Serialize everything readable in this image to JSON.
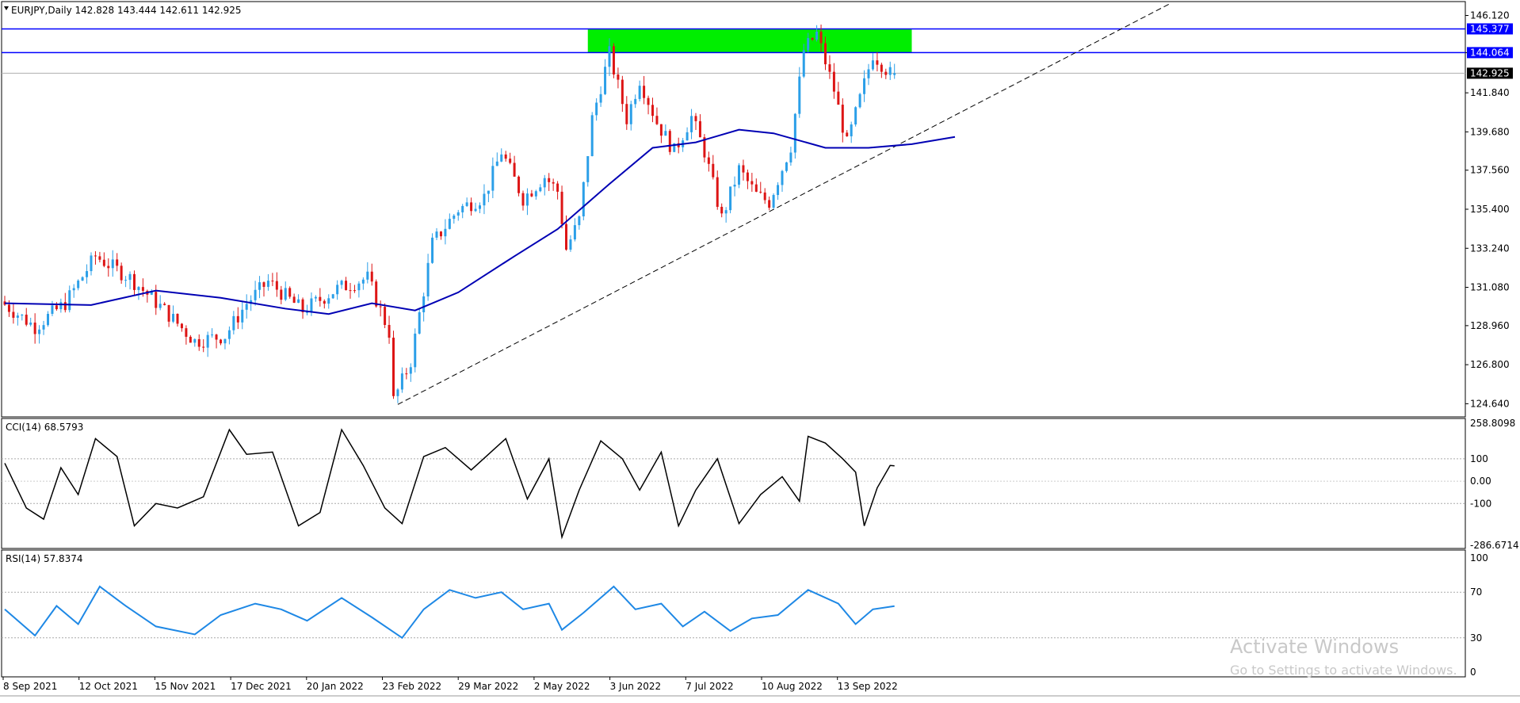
{
  "header": {
    "symbol_line": "EURJPY,Daily  142.828 143.444 142.611 142.925"
  },
  "watermark": {
    "line1": "Activate Windows",
    "line2": "Go to Settings to activate Windows."
  },
  "colors": {
    "bull": "#2b9fe8",
    "bear": "#dd1515",
    "ma": "#0000b4",
    "zone": "#00ee00",
    "hline": "#0000ff",
    "cci": "#000000",
    "rsi": "#1e88e5"
  },
  "chart_data": [
    {
      "type": "candlestick",
      "symbol": "EURJPY",
      "timeframe": "Daily",
      "ohlc_last": {
        "open": 142.828,
        "high": 143.444,
        "low": 142.611,
        "close": 142.925
      },
      "price_ticks": [
        "146.120",
        "144.064",
        "141.840",
        "139.680",
        "137.560",
        "135.400",
        "133.240",
        "131.080",
        "128.960",
        "126.800",
        "124.640"
      ],
      "ylim": [
        124.0,
        146.8
      ],
      "date_labels": [
        "8 Sep 2021",
        "12 Oct 2021",
        "15 Nov 2021",
        "17 Dec 2021",
        "20 Jan 2022",
        "23 Feb 2022",
        "29 Mar 2022",
        "2 May 2022",
        "3 Jun 2022",
        "7 Jul 2022",
        "10 Aug 2022",
        "13 Sep 2022"
      ],
      "price_markers": [
        {
          "label": "145.377",
          "value": 145.377,
          "style": "blue-box"
        },
        {
          "label": "144.064",
          "value": 144.064,
          "style": "blue-box"
        },
        {
          "label": "142.925",
          "value": 142.925,
          "style": "black-box"
        }
      ],
      "horizontal_lines": [
        145.377,
        144.064
      ],
      "zone": {
        "from": 144.064,
        "to": 145.377,
        "start_bar": 135,
        "end_bar": 210
      },
      "trendline": {
        "bar1": 91,
        "price1": 124.6,
        "bar2": 270,
        "price2": 146.8
      },
      "ma_points": [
        [
          0,
          130.2
        ],
        [
          20,
          130.1
        ],
        [
          35,
          130.9
        ],
        [
          50,
          130.5
        ],
        [
          65,
          129.9
        ],
        [
          75,
          129.6
        ],
        [
          85,
          130.2
        ],
        [
          95,
          129.8
        ],
        [
          105,
          130.8
        ],
        [
          118,
          132.8
        ],
        [
          128,
          134.3
        ],
        [
          140,
          136.8
        ],
        [
          150,
          138.8
        ],
        [
          160,
          139.1
        ],
        [
          170,
          139.8
        ],
        [
          178,
          139.6
        ],
        [
          190,
          138.8
        ],
        [
          200,
          138.8
        ],
        [
          210,
          139.0
        ],
        [
          220,
          139.4
        ]
      ],
      "price_anchors": [
        [
          0,
          130.3
        ],
        [
          8,
          128.9
        ],
        [
          15,
          130.2
        ],
        [
          22,
          132.8
        ],
        [
          30,
          131.6
        ],
        [
          38,
          129.8
        ],
        [
          45,
          128.1
        ],
        [
          52,
          128.4
        ],
        [
          57,
          130.2
        ],
        [
          62,
          131.4
        ],
        [
          70,
          129.8
        ],
        [
          78,
          131.0
        ],
        [
          85,
          131.6
        ],
        [
          90,
          128.6
        ],
        [
          91,
          124.8
        ],
        [
          95,
          127.0
        ],
        [
          100,
          133.5
        ],
        [
          106,
          135.4
        ],
        [
          112,
          136.1
        ],
        [
          116,
          138.6
        ],
        [
          121,
          136.0
        ],
        [
          126,
          137.2
        ],
        [
          129,
          136.4
        ],
        [
          131,
          133.2
        ],
        [
          134,
          134.8
        ],
        [
          137,
          140.4
        ],
        [
          141,
          144.0
        ],
        [
          145,
          140.4
        ],
        [
          148,
          142.6
        ],
        [
          152,
          140.2
        ],
        [
          156,
          138.6
        ],
        [
          160,
          140.5
        ],
        [
          163,
          138.6
        ],
        [
          167,
          134.9
        ],
        [
          171,
          137.6
        ],
        [
          175,
          136.2
        ],
        [
          178,
          135.8
        ],
        [
          183,
          138.9
        ],
        [
          186,
          144.2
        ],
        [
          189,
          145.1
        ],
        [
          193,
          142.0
        ],
        [
          196,
          139.0
        ],
        [
          199,
          141.5
        ],
        [
          202,
          144.0
        ],
        [
          206,
          142.9
        ]
      ],
      "candle_count": 207
    },
    {
      "type": "line",
      "name": "CCI(14) 68.5793",
      "ylim": [
        -286.6714,
        258.8098
      ],
      "ticks": [
        "258.8098",
        "100",
        "0.00",
        "-100",
        "-286.6714"
      ],
      "levels": [
        100,
        -100
      ],
      "points": [
        [
          0,
          80
        ],
        [
          5,
          -120
        ],
        [
          9,
          -170
        ],
        [
          13,
          60
        ],
        [
          17,
          -60
        ],
        [
          21,
          190
        ],
        [
          26,
          110
        ],
        [
          30,
          -200
        ],
        [
          35,
          -100
        ],
        [
          40,
          -120
        ],
        [
          46,
          -70
        ],
        [
          52,
          230
        ],
        [
          56,
          120
        ],
        [
          62,
          130
        ],
        [
          68,
          -200
        ],
        [
          73,
          -140
        ],
        [
          78,
          230
        ],
        [
          83,
          70
        ],
        [
          88,
          -120
        ],
        [
          92,
          -190
        ],
        [
          97,
          110
        ],
        [
          102,
          150
        ],
        [
          108,
          50
        ],
        [
          112,
          120
        ],
        [
          116,
          190
        ],
        [
          121,
          -80
        ],
        [
          126,
          100
        ],
        [
          129,
          -250
        ],
        [
          133,
          -40
        ],
        [
          138,
          180
        ],
        [
          143,
          100
        ],
        [
          147,
          -40
        ],
        [
          152,
          130
        ],
        [
          156,
          -200
        ],
        [
          160,
          -40
        ],
        [
          165,
          100
        ],
        [
          170,
          -190
        ],
        [
          175,
          -60
        ],
        [
          180,
          20
        ],
        [
          184,
          -90
        ],
        [
          186,
          200
        ],
        [
          190,
          170
        ],
        [
          194,
          100
        ],
        [
          197,
          40
        ],
        [
          199,
          -200
        ],
        [
          202,
          -30
        ],
        [
          205,
          70
        ],
        [
          206,
          68.58
        ]
      ]
    },
    {
      "type": "line",
      "name": "RSI(14) 57.8374",
      "ylim": [
        0,
        100
      ],
      "ticks": [
        "100",
        "70",
        "30",
        "0"
      ],
      "levels": [
        70,
        30
      ],
      "points": [
        [
          0,
          55
        ],
        [
          7,
          32
        ],
        [
          12,
          58
        ],
        [
          17,
          42
        ],
        [
          22,
          75
        ],
        [
          28,
          58
        ],
        [
          35,
          40
        ],
        [
          44,
          33
        ],
        [
          50,
          50
        ],
        [
          58,
          60
        ],
        [
          64,
          55
        ],
        [
          70,
          45
        ],
        [
          78,
          65
        ],
        [
          85,
          48
        ],
        [
          92,
          30
        ],
        [
          97,
          55
        ],
        [
          103,
          72
        ],
        [
          109,
          65
        ],
        [
          115,
          70
        ],
        [
          120,
          55
        ],
        [
          126,
          60
        ],
        [
          129,
          37
        ],
        [
          134,
          52
        ],
        [
          141,
          75
        ],
        [
          146,
          55
        ],
        [
          152,
          60
        ],
        [
          157,
          40
        ],
        [
          162,
          53
        ],
        [
          168,
          36
        ],
        [
          173,
          47
        ],
        [
          179,
          50
        ],
        [
          186,
          72
        ],
        [
          193,
          60
        ],
        [
          197,
          42
        ],
        [
          201,
          55
        ],
        [
          206,
          57.84
        ]
      ]
    }
  ]
}
